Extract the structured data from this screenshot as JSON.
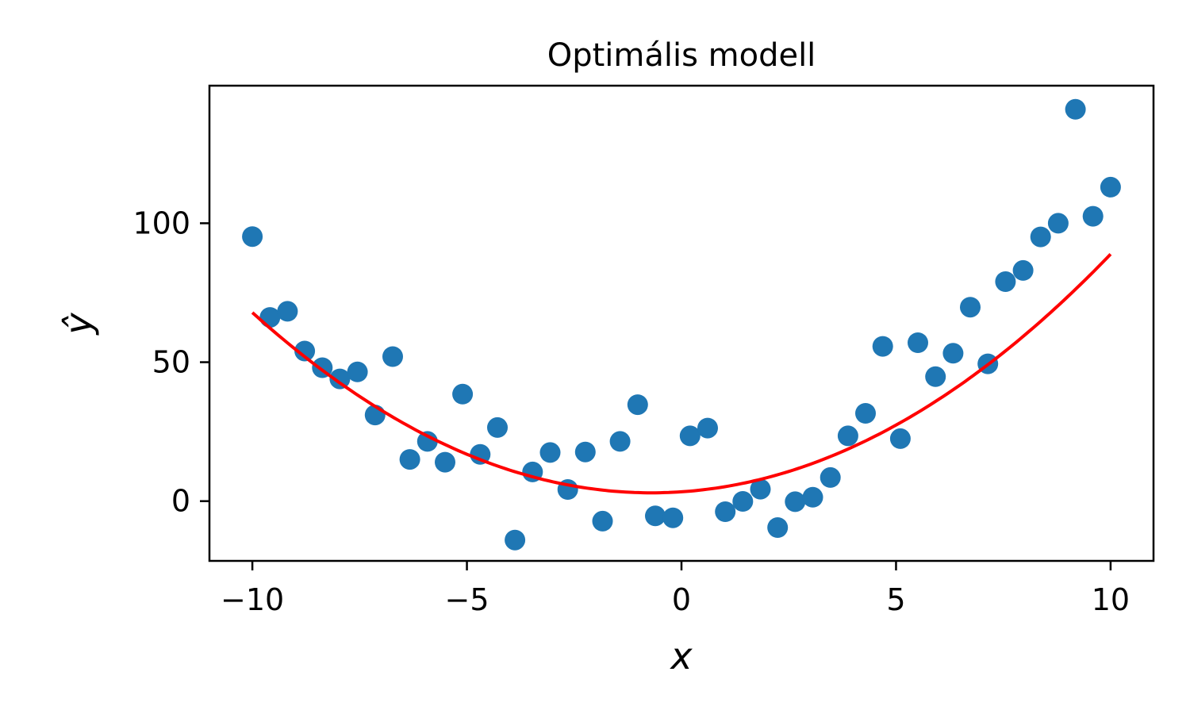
{
  "chart_data": {
    "type": "scatter",
    "title": "Optimális modell",
    "xlabel": "x",
    "ylabel": "ŷ",
    "xlim": [
      -11,
      11
    ],
    "ylim": [
      -21.5,
      149.5
    ],
    "grid": false,
    "x_ticks": [
      -10,
      -5,
      0,
      5,
      10
    ],
    "x_tick_labels": [
      "−10",
      "−5",
      "0",
      "5",
      "10"
    ],
    "y_ticks": [
      0,
      50,
      100
    ],
    "y_tick_labels": [
      "0",
      "50",
      "100"
    ],
    "colors": {
      "points": "#1f77b4",
      "fit_line": "#ff0000"
    },
    "series": [
      {
        "kind": "scatter",
        "x": [
          -10.0,
          -9.59,
          -9.18,
          -8.78,
          -8.37,
          -7.96,
          -7.55,
          -7.14,
          -6.73,
          -6.33,
          -5.92,
          -5.51,
          -5.1,
          -4.69,
          -4.29,
          -3.88,
          -3.47,
          -3.06,
          -2.65,
          -2.24,
          -1.84,
          -1.43,
          -1.02,
          -0.61,
          -0.2,
          0.2,
          0.61,
          1.02,
          1.43,
          1.84,
          2.24,
          2.65,
          3.06,
          3.47,
          3.88,
          4.29,
          4.69,
          5.1,
          5.51,
          5.92,
          6.33,
          6.73,
          7.14,
          7.55,
          7.96,
          8.37,
          8.78,
          9.18,
          9.59,
          10.0
        ],
        "y": [
          95.2,
          66.1,
          68.3,
          54.0,
          48.0,
          44.0,
          46.5,
          31.0,
          52.0,
          15.0,
          21.5,
          14.0,
          38.5,
          16.8,
          26.5,
          -14.0,
          10.5,
          17.5,
          4.2,
          17.7,
          -7.2,
          21.5,
          34.7,
          -5.3,
          -6.0,
          23.5,
          26.3,
          -3.8,
          -0.1,
          4.3,
          -9.5,
          -0.2,
          1.4,
          8.5,
          23.5,
          31.6,
          55.7,
          22.5,
          57.0,
          44.8,
          53.2,
          69.8,
          49.4,
          79.0,
          83.0,
          95.1,
          100.0,
          141.0,
          102.5,
          113.0
        ]
      },
      {
        "kind": "line",
        "model": {
          "a": 0.75,
          "x0": -0.7,
          "c": 3.0
        },
        "x_range": [
          -10,
          10
        ]
      }
    ]
  }
}
